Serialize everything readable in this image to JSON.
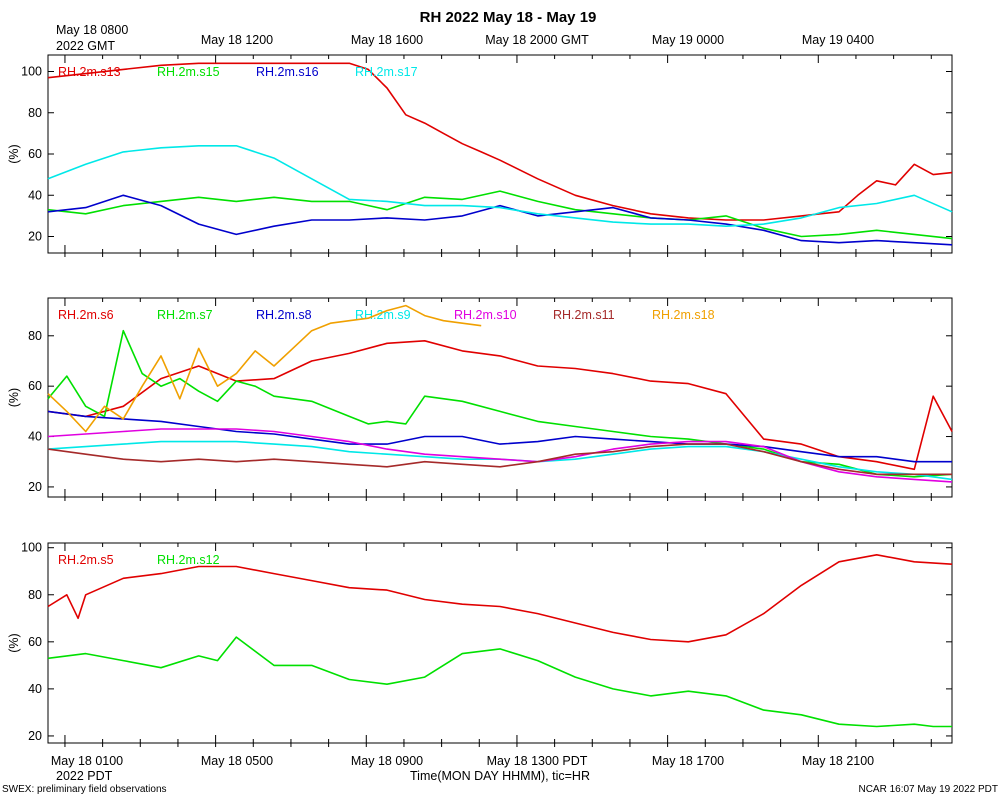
{
  "title": "RH 2022 May 18 - May 19",
  "top_axis": {
    "first_label_line1": "May 18 0800",
    "first_label_line2": "2022 GMT",
    "labels": [
      "May 18 1200",
      "May 18 1600",
      "May 18 2000 GMT",
      "May 19 0000",
      "May 19 0400"
    ]
  },
  "bottom_axis": {
    "labels": [
      "May 18 0100",
      "May 18 0500",
      "May 18 0900",
      "May 18 1300 PDT",
      "May 18 1700",
      "May 18 2100"
    ],
    "year_label": "2022 PDT",
    "xlabel": "Time(MON DAY HHMM), tic=HR"
  },
  "footer": {
    "left": "SWEX: preliminary field observations",
    "right": "NCAR 16:07 May 19 2022 PDT"
  },
  "colors": {
    "red": "#e00000",
    "green": "#00e000",
    "blue": "#0000cc",
    "cyan": "#00e8e8",
    "magenta": "#e000e0",
    "brown": "#a52a2a",
    "orange": "#f0a000"
  },
  "chart_data": [
    {
      "type": "line",
      "ylabel": "(%)",
      "ylim": [
        12,
        108
      ],
      "yticks": [
        20,
        40,
        60,
        80,
        100
      ],
      "x_unit": "hours since May 18 0000 PDT",
      "xlim": [
        0,
        24
      ],
      "series": [
        {
          "name": "RH.2m.s13",
          "color": "red",
          "x": [
            0,
            1,
            2,
            3,
            4,
            5,
            6,
            7,
            8,
            8.5,
            9,
            9.5,
            10,
            10.5,
            11,
            11.5,
            12,
            13,
            14,
            15,
            16,
            17,
            18,
            19,
            20,
            20.5,
            21,
            21.5,
            22,
            22.5,
            23,
            23.5,
            24
          ],
          "y": [
            97,
            99,
            101,
            103,
            104,
            104,
            104,
            104,
            104,
            101,
            92,
            79,
            75,
            70,
            65,
            61,
            57,
            48,
            40,
            35,
            31,
            29,
            28,
            28,
            30,
            31,
            32,
            40,
            47,
            45,
            55,
            50,
            51
          ]
        },
        {
          "name": "RH.2m.s15",
          "color": "green",
          "x": [
            0,
            1,
            2,
            3,
            4,
            5,
            6,
            7,
            8,
            9,
            10,
            11,
            12,
            13,
            14,
            15,
            16,
            17,
            18,
            19,
            20,
            21,
            22,
            23,
            24
          ],
          "y": [
            33,
            31,
            35,
            37,
            39,
            37,
            39,
            37,
            37,
            33,
            39,
            38,
            42,
            37,
            33,
            31,
            29,
            28,
            30,
            24,
            20,
            21,
            23,
            21,
            19
          ]
        },
        {
          "name": "RH.2m.s16",
          "color": "blue",
          "x": [
            0,
            1,
            2,
            3,
            4,
            5,
            6,
            7,
            8,
            9,
            10,
            11,
            12,
            13,
            14,
            15,
            16,
            17,
            18,
            19,
            20,
            21,
            22,
            23,
            24
          ],
          "y": [
            32,
            34,
            40,
            35,
            26,
            21,
            25,
            28,
            28,
            29,
            28,
            30,
            35,
            30,
            32,
            34,
            29,
            28,
            26,
            23,
            18,
            17,
            18,
            17,
            16
          ]
        },
        {
          "name": "RH.2m.s17",
          "color": "cyan",
          "x": [
            0,
            1,
            2,
            3,
            4,
            5,
            6,
            7,
            8,
            9,
            10,
            11,
            12,
            13,
            14,
            15,
            16,
            17,
            18,
            19,
            20,
            21,
            22,
            23,
            24
          ],
          "y": [
            48,
            55,
            61,
            63,
            64,
            64,
            58,
            48,
            38,
            37,
            35,
            35,
            34,
            31,
            29,
            27,
            26,
            26,
            25,
            26,
            29,
            34,
            36,
            40,
            32
          ]
        }
      ]
    },
    {
      "type": "line",
      "ylabel": "(%)",
      "ylim": [
        16,
        95
      ],
      "yticks": [
        20,
        40,
        60,
        80
      ],
      "x_unit": "hours since May 18 0000 PDT",
      "xlim": [
        0,
        24
      ],
      "series": [
        {
          "name": "RH.2m.s6",
          "color": "red",
          "x": [
            0,
            1,
            2,
            3,
            4,
            5,
            6,
            7,
            8,
            9,
            10,
            11,
            12,
            13,
            14,
            15,
            16,
            17,
            18,
            19,
            20,
            21,
            22,
            23,
            23.5,
            24
          ],
          "y": [
            50,
            48,
            52,
            63,
            68,
            62,
            63,
            70,
            73,
            77,
            78,
            74,
            72,
            68,
            67,
            65,
            62,
            61,
            57,
            39,
            37,
            32,
            30,
            27,
            56,
            42
          ]
        },
        {
          "name": "RH.2m.s7",
          "color": "green",
          "x": [
            0,
            0.5,
            1,
            1.5,
            2,
            2.5,
            3,
            3.5,
            4,
            4.5,
            5,
            5.5,
            6,
            7,
            8,
            8.5,
            9,
            9.5,
            10,
            11,
            12,
            13,
            14,
            15,
            16,
            17,
            18,
            19,
            20,
            21,
            22,
            23,
            24
          ],
          "y": [
            55,
            64,
            52,
            48,
            82,
            65,
            60,
            63,
            58,
            54,
            62,
            60,
            56,
            54,
            48,
            45,
            46,
            45,
            56,
            54,
            50,
            46,
            44,
            42,
            40,
            39,
            37,
            35,
            30,
            29,
            25,
            24,
            25
          ]
        },
        {
          "name": "RH.2m.s8",
          "color": "blue",
          "x": [
            0,
            1,
            2,
            3,
            4,
            5,
            6,
            7,
            8,
            9,
            10,
            11,
            12,
            13,
            14,
            15,
            16,
            17,
            18,
            19,
            20,
            21,
            22,
            23,
            24
          ],
          "y": [
            50,
            48,
            47,
            46,
            44,
            42,
            41,
            39,
            37,
            37,
            40,
            40,
            37,
            38,
            40,
            39,
            38,
            37,
            37,
            36,
            34,
            32,
            32,
            30,
            30
          ]
        },
        {
          "name": "RH.2m.s9",
          "color": "cyan",
          "x": [
            0,
            1,
            2,
            3,
            4,
            5,
            6,
            7,
            8,
            9,
            10,
            11,
            12,
            13,
            14,
            15,
            16,
            17,
            18,
            19,
            20,
            21,
            22,
            23,
            24
          ],
          "y": [
            35,
            36,
            37,
            38,
            38,
            38,
            37,
            36,
            34,
            33,
            32,
            31,
            31,
            30,
            31,
            33,
            35,
            36,
            36,
            34,
            31,
            28,
            26,
            25,
            23
          ]
        },
        {
          "name": "RH.2m.s10",
          "color": "magenta",
          "x": [
            0,
            1,
            2,
            3,
            4,
            5,
            6,
            7,
            8,
            9,
            10,
            11,
            12,
            13,
            14,
            15,
            16,
            17,
            18,
            19,
            20,
            21,
            22,
            23,
            24
          ],
          "y": [
            40,
            41,
            42,
            43,
            43,
            43,
            42,
            40,
            38,
            35,
            33,
            32,
            31,
            30,
            32,
            35,
            37,
            38,
            38,
            36,
            30,
            26,
            24,
            23,
            22
          ]
        },
        {
          "name": "RH.2m.s11",
          "color": "brown",
          "x": [
            0,
            1,
            2,
            3,
            4,
            5,
            6,
            7,
            8,
            9,
            10,
            11,
            12,
            13,
            14,
            15,
            16,
            17,
            18,
            19,
            20,
            21,
            22,
            23,
            24
          ],
          "y": [
            35,
            33,
            31,
            30,
            31,
            30,
            31,
            30,
            29,
            28,
            30,
            29,
            28,
            30,
            33,
            34,
            36,
            37,
            37,
            34,
            30,
            27,
            25,
            25,
            25
          ]
        },
        {
          "name": "RH.2m.s18",
          "color": "orange",
          "x": [
            0,
            0.5,
            1,
            1.5,
            2,
            2.5,
            3,
            3.5,
            4,
            4.5,
            5,
            5.5,
            6,
            6.5,
            7,
            7.5,
            8,
            8.5,
            9,
            9.5,
            10,
            10.5,
            11,
            11.5
          ],
          "y": [
            57,
            50,
            42,
            52,
            47,
            60,
            72,
            55,
            75,
            60,
            65,
            74,
            68,
            75,
            82,
            85,
            86,
            87,
            90,
            92,
            88,
            86,
            85,
            84
          ]
        }
      ]
    },
    {
      "type": "line",
      "ylabel": "(%)",
      "ylim": [
        17,
        102
      ],
      "yticks": [
        20,
        40,
        60,
        80,
        100
      ],
      "x_unit": "hours since May 18 0000 PDT",
      "xlim": [
        0,
        24
      ],
      "series": [
        {
          "name": "RH.2m.s5",
          "color": "red",
          "x": [
            0,
            0.5,
            0.8,
            1,
            2,
            3,
            4,
            5,
            6,
            7,
            8,
            9,
            10,
            11,
            12,
            13,
            14,
            15,
            16,
            17,
            18,
            19,
            20,
            21,
            22,
            23,
            24
          ],
          "y": [
            75,
            80,
            70,
            80,
            87,
            89,
            92,
            92,
            89,
            86,
            83,
            82,
            78,
            76,
            75,
            72,
            68,
            64,
            61,
            60,
            63,
            72,
            84,
            94,
            97,
            94,
            93
          ]
        },
        {
          "name": "RH.2m.s12",
          "color": "green",
          "x": [
            0,
            1,
            2,
            3,
            4,
            4.5,
            5,
            6,
            7,
            8,
            9,
            10,
            11,
            12,
            13,
            14,
            15,
            16,
            17,
            18,
            19,
            20,
            21,
            22,
            23,
            23.5,
            24
          ],
          "y": [
            53,
            55,
            52,
            49,
            54,
            52,
            62,
            50,
            50,
            44,
            42,
            45,
            55,
            57,
            52,
            45,
            40,
            37,
            39,
            37,
            31,
            29,
            25,
            24,
            25,
            24,
            24
          ]
        }
      ]
    }
  ]
}
